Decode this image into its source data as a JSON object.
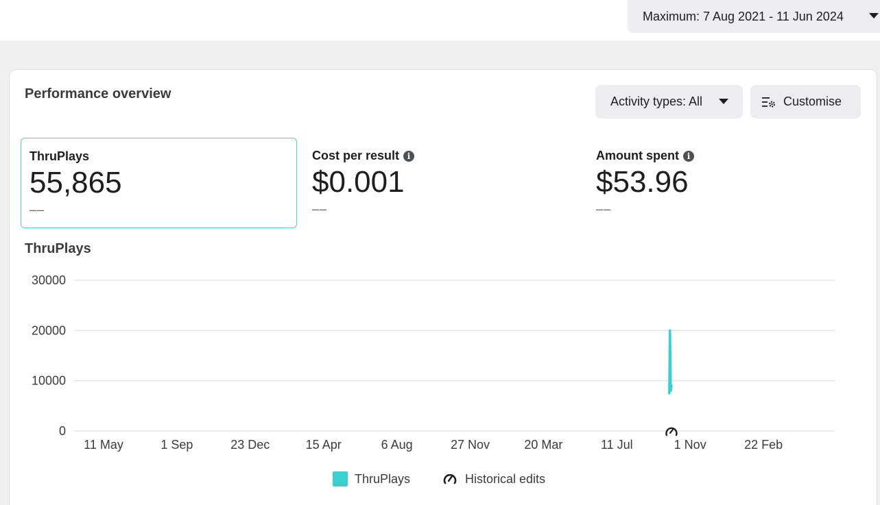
{
  "date_range": {
    "label": "Maximum: 7 Aug 2021 - 11 Jun 2024"
  },
  "card": {
    "title": "Performance overview"
  },
  "controls": {
    "activity_label": "Activity types: All",
    "customise_label": "Customise"
  },
  "metrics": [
    {
      "label": "ThruPlays",
      "value": "55,865",
      "delta": "––",
      "info": false,
      "selected": true
    },
    {
      "label": "Cost per result",
      "value": "$0.001",
      "delta": "––",
      "info": true,
      "selected": false
    },
    {
      "label": "Amount spent",
      "value": "$53.96",
      "delta": "––",
      "info": true,
      "selected": false
    }
  ],
  "chart_title": "ThruPlays",
  "legend": {
    "series": "ThruPlays",
    "edits": "Historical edits"
  },
  "colors": {
    "series": "#3ccfcf",
    "grid": "#dadde1",
    "selected_border": "#4dd0d6"
  },
  "chart_data": {
    "type": "line",
    "title": "",
    "xlabel": "",
    "ylabel": "",
    "ylim": [
      0,
      30000
    ],
    "yticks": [
      0,
      10000,
      20000,
      30000
    ],
    "xtick_labels": [
      "11 May",
      "1 Sep",
      "23 Dec",
      "15 Apr",
      "6 Aug",
      "27 Nov",
      "20 Mar",
      "11 Jul",
      "1 Nov",
      "22 Feb"
    ],
    "x_range": [
      "2021-08-07",
      "2024-06-11"
    ],
    "grid": true,
    "legend_position": "bottom",
    "series": [
      {
        "name": "ThruPlays",
        "x": [
          "2023-10-29",
          "2023-10-30",
          "2023-10-31",
          "2023-11-01"
        ],
        "values": [
          7500,
          20000,
          8000,
          9000
        ]
      }
    ],
    "historical_edit_x": "2023-11-01"
  }
}
